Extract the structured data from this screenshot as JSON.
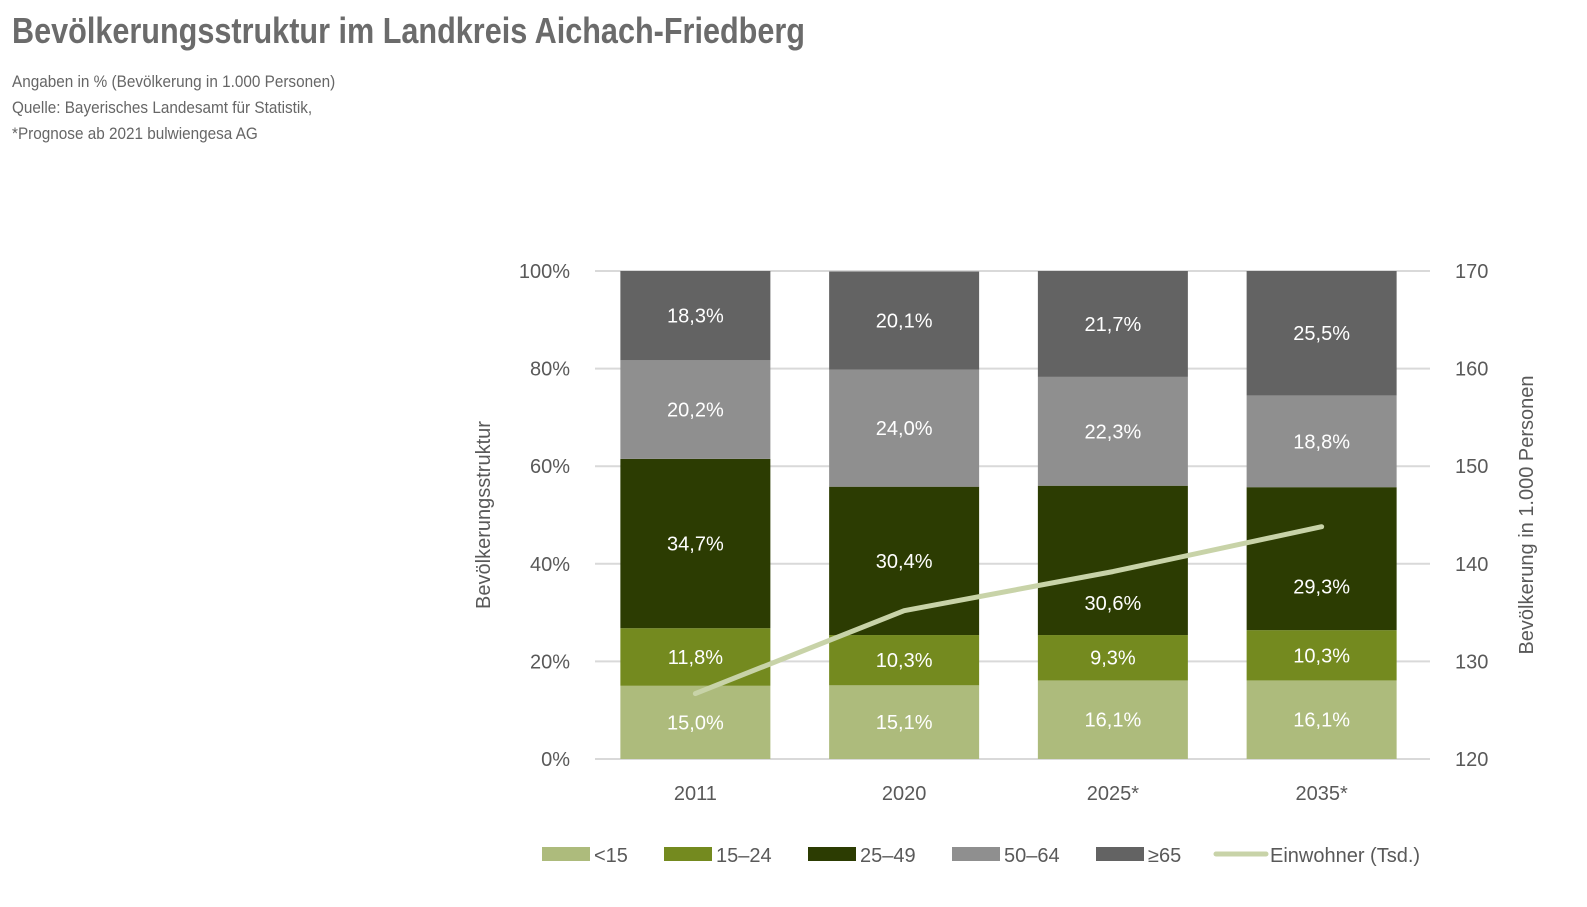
{
  "header": {
    "title": "Bevölkerungsstruktur im Landkreis Aichach-Friedberg",
    "subtitle_lines": [
      "Angaben in % (Bevölkerung in 1.000 Personen)",
      "Quelle: Bayerisches Landesamt für Statistik,",
      "*Prognose ab 2021 bulwiengesa AG"
    ]
  },
  "chart_data": {
    "type": "bar",
    "stacked": true,
    "categories": [
      "2011",
      "2020",
      "2025*",
      "2035*"
    ],
    "series": [
      {
        "name": "<15",
        "color": "#adbb7c",
        "values": [
          15.0,
          15.1,
          16.1,
          16.1
        ],
        "labels": [
          "15,0%",
          "15,1%",
          "16,1%",
          "16,1%"
        ]
      },
      {
        "name": "15–24",
        "color": "#748a1f",
        "values": [
          11.8,
          10.3,
          9.3,
          10.3
        ],
        "labels": [
          "11,8%",
          "10,3%",
          "9,3%",
          "10,3%"
        ]
      },
      {
        "name": "25–49",
        "color": "#2c3c02",
        "values": [
          34.7,
          30.4,
          30.6,
          29.3
        ],
        "labels": [
          "34,7%",
          "30,4%",
          "30,6%",
          "29,3%"
        ]
      },
      {
        "name": "50–64",
        "color": "#8f8f8f",
        "values": [
          20.2,
          24.0,
          22.3,
          18.8
        ],
        "labels": [
          "20,2%",
          "24,0%",
          "22,3%",
          "18,8%"
        ]
      },
      {
        "name": "≥65",
        "color": "#636363",
        "values": [
          18.3,
          20.1,
          21.7,
          25.5
        ],
        "labels": [
          "18,3%",
          "20,1%",
          "21,7%",
          "25,5%"
        ]
      }
    ],
    "line": {
      "name": "Einwohner (Tsd.)",
      "color": "#c8d3a8",
      "axis": "right",
      "values": [
        126.7,
        135.2,
        139.2,
        143.8
      ]
    },
    "ylabel": "Bevölkerungsstruktur",
    "y2label": "Bevölkerung in 1.000 Personen",
    "ylim": [
      0,
      100
    ],
    "y2lim": [
      120,
      170
    ],
    "yticks": [
      "0%",
      "20%",
      "40%",
      "60%",
      "80%",
      "100%"
    ],
    "y2ticks": [
      "120",
      "130",
      "140",
      "150",
      "160",
      "170"
    ],
    "grid": true,
    "legend": "bottom"
  }
}
